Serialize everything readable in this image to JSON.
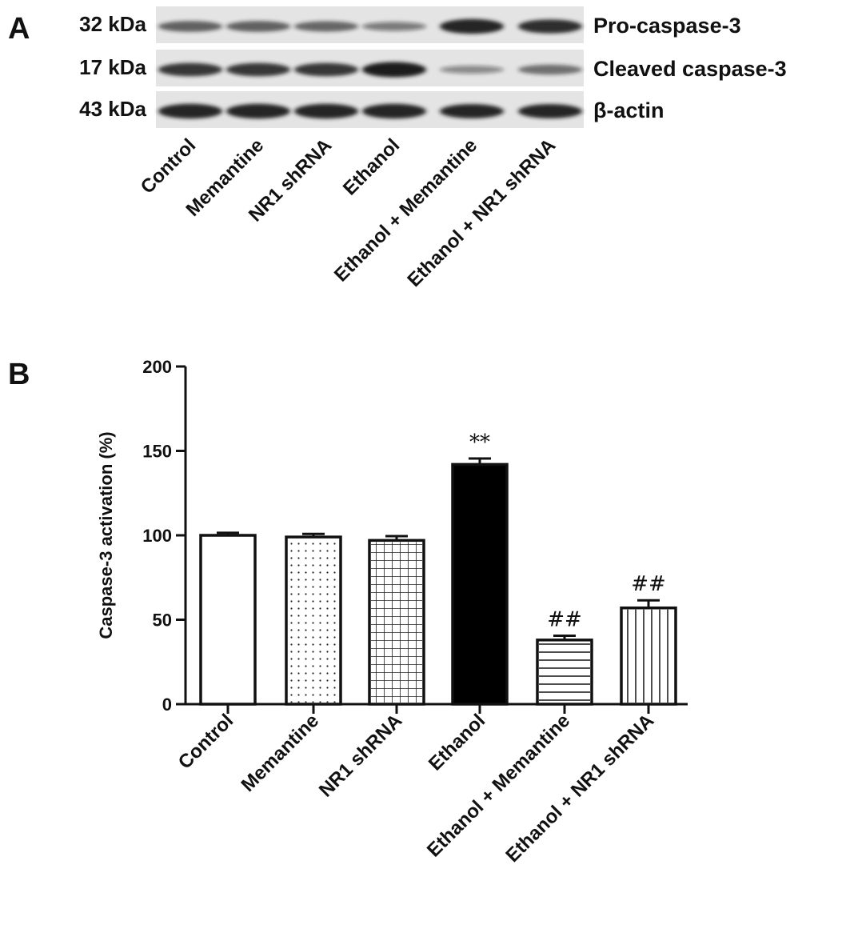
{
  "panel_a": {
    "letter": "A",
    "rows": [
      {
        "kda": "32 kDa",
        "protein": "Pro-caspase-3",
        "intensity": [
          0.55,
          0.55,
          0.5,
          0.35,
          0.95,
          0.85
        ]
      },
      {
        "kda": "17 kDa",
        "protein": "Cleaved caspase-3",
        "intensity": [
          0.8,
          0.8,
          0.8,
          1.0,
          0.25,
          0.45
        ]
      },
      {
        "kda": "43 kDa",
        "protein": "β-actin",
        "intensity": [
          0.95,
          0.95,
          0.95,
          0.95,
          0.9,
          0.9
        ]
      }
    ],
    "lanes": [
      "Control",
      "Memantine",
      "NR1 shRNA",
      "Ethanol",
      "Ethanol + Memantine",
      "Ethanol + NR1 shRNA"
    ]
  },
  "panel_b": {
    "letter": "B"
  },
  "chart_data": {
    "type": "bar",
    "categories": [
      "Control",
      "Memantine",
      "NR1 shRNA",
      "Ethanol",
      "Ethanol + Memantine",
      "Ethanol + NR1 shRNA"
    ],
    "values": [
      100,
      99,
      97,
      142,
      38,
      57
    ],
    "errors": [
      1.5,
      1.8,
      2.5,
      3.5,
      2.5,
      4.5
    ],
    "patterns": [
      "none",
      "dots",
      "grid",
      "solid",
      "horizontal",
      "vertical"
    ],
    "annotations": [
      "",
      "",
      "",
      "**",
      "##",
      "##"
    ],
    "ylabel": "Caspase-3 activation (%)",
    "xlabel": "",
    "ylim": [
      0,
      200
    ],
    "yticks": [
      0,
      50,
      100,
      150,
      200
    ],
    "grid": false,
    "colors": {
      "bar_stroke": "#111111",
      "solid_fill": "#000000",
      "background": "#ffffff",
      "blot_background": "#e4e4e4",
      "band": "#1a1a1a"
    }
  }
}
